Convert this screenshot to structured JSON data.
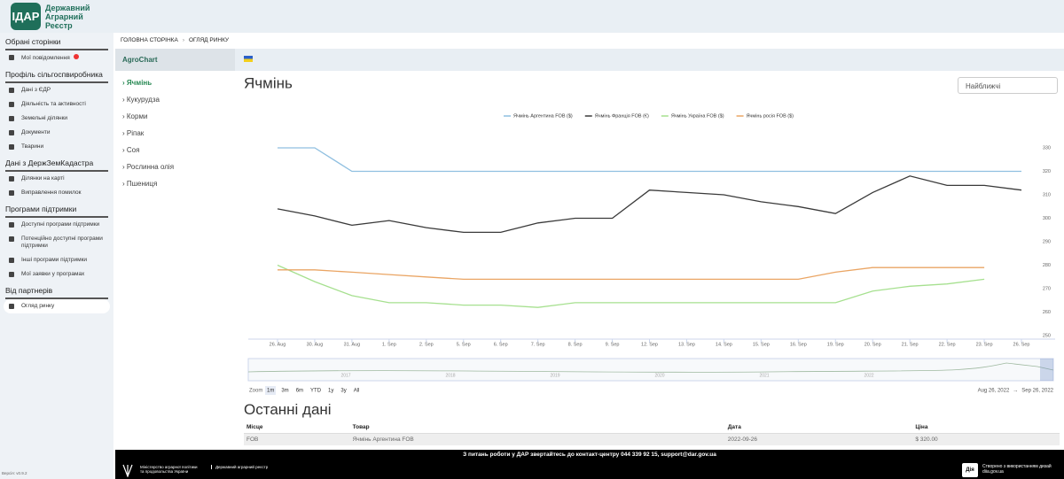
{
  "header": {
    "logo": "ІДАР",
    "name": "Державний Аграрний Реєстр"
  },
  "sidebar": {
    "sections": [
      {
        "title": "Обрані сторінки",
        "items": [
          "Мої повідомлення"
        ]
      },
      {
        "title": "Профіль сільгоспвиробника",
        "items": [
          "Дані з ЄДР",
          "Діяльність та активності",
          "Земельні ділянки",
          "Документи",
          "Тварини"
        ]
      },
      {
        "title": "Дані з ДержЗемКадастра",
        "items": [
          "Ділянки на карті",
          "Виправлення помилок"
        ]
      },
      {
        "title": "Програми підтримки",
        "items": [
          "Доступні програми підтримки",
          "Потенційно доступні програми підтримки",
          "Інші програми підтримки",
          "Мої заявки у програмах"
        ]
      },
      {
        "title": "Від партнерів",
        "items": [
          "Огляд ринку"
        ]
      }
    ],
    "version": "Версія: v0.9.2"
  },
  "breadcrumb": [
    "ГОЛОВНА СТОРІНКА",
    "ОГЛЯД РИНКУ"
  ],
  "panel_title": "AgroChart",
  "products": [
    "Ячмінь",
    "Кукурудза",
    "Корми",
    "Ріпак",
    "Соя",
    "Рослинна олія",
    "Пшениця"
  ],
  "dropdown": "Найближчі",
  "chart_data": {
    "type": "line",
    "title": "Ячмінь",
    "categories": [
      "26. Aug",
      "30. Aug",
      "31. Aug",
      "1. Sep",
      "2. Sep",
      "5. Sep",
      "6. Sep",
      "7. Sep",
      "8. Sep",
      "9. Sep",
      "12. Sep",
      "13. Sep",
      "14. Sep",
      "15. Sep",
      "16. Sep",
      "19. Sep",
      "20. Sep",
      "21. Sep",
      "22. Sep",
      "23. Sep",
      "26. Sep"
    ],
    "series": [
      {
        "name": "Ячмінь Аргентина FOB ($)",
        "color": "#8fbfe0",
        "values": [
          330,
          330,
          320,
          320,
          320,
          320,
          320,
          320,
          320,
          320,
          320,
          320,
          320,
          320,
          320,
          320,
          320,
          320,
          320,
          320,
          320
        ]
      },
      {
        "name": "Ячмінь Франція FOB (€)",
        "color": "#3a3a3a",
        "values": [
          304,
          301,
          297,
          299,
          296,
          294,
          294,
          298,
          300,
          300,
          312,
          311,
          310,
          307,
          305,
          302,
          311,
          318,
          314,
          314,
          312
        ]
      },
      {
        "name": "Ячмінь Україна FOB ($)",
        "color": "#a6e08f",
        "values": [
          280,
          273,
          267,
          264,
          264,
          263,
          263,
          262,
          264,
          264,
          264,
          264,
          264,
          264,
          264,
          264,
          269,
          271,
          272,
          274,
          null
        ]
      },
      {
        "name": "Ячмінь росія FOB ($)",
        "color": "#eaa564",
        "values": [
          278,
          278,
          277,
          276,
          275,
          274,
          274,
          274,
          274,
          274,
          274,
          274,
          274,
          274,
          274,
          277,
          279,
          279,
          279,
          279,
          null
        ]
      }
    ],
    "ylim": [
      250,
      330
    ],
    "yticks": [
      250,
      260,
      270,
      280,
      290,
      300,
      310,
      320,
      330
    ],
    "grid": false,
    "legend": "top"
  },
  "navigator_labels": [
    "2017",
    "2018",
    "2019",
    "2020",
    "2021",
    "2022"
  ],
  "range_selector": {
    "label": "Zoom",
    "buttons": [
      "1m",
      "3m",
      "6m",
      "YTD",
      "1y",
      "3y",
      "All"
    ],
    "from": "Aug 26, 2022",
    "to": "Sep 26, 2022"
  },
  "latest": {
    "title": "Останні дані",
    "columns": [
      "Місце",
      "Товар",
      "Дата",
      "Ціна"
    ],
    "rows": [
      [
        "FOB",
        "Ячмінь Аргентина FOB",
        "2022-09-26",
        "$ 320.00"
      ]
    ]
  },
  "footer": {
    "contact": "З питань роботи у ДАР звертайтесь до контакт-центру 044 339 92 15, support@dar.gov.ua",
    "ministry": "Міністерство аграрної політики та продовольства України",
    "registry": "Державний аграрний реєстр",
    "diia_logo": "Дія",
    "diia_text": "Створено з використанням дизай",
    "diia_url": "diia.gov.ua"
  }
}
